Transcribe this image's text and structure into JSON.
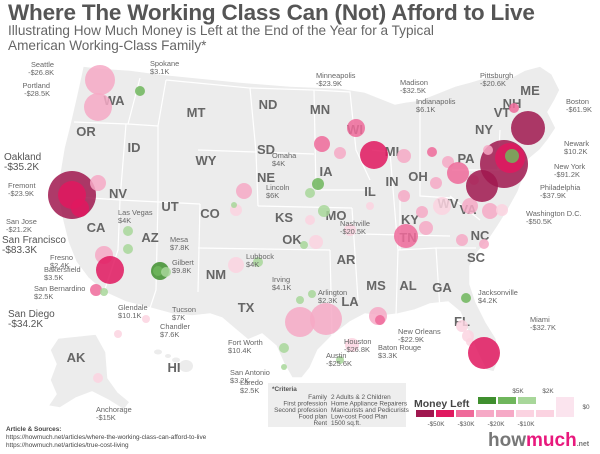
{
  "title": "Where The Working Class Can (Not) Afford to Live",
  "subtitle_line1": "Illustrating How Much Money is Left at the End of the Year for a Typical",
  "subtitle_line2": "American Working-Class Family*",
  "states": [
    "WA",
    "OR",
    "ID",
    "MT",
    "ND",
    "MN",
    "WI",
    "MI",
    "ME",
    "NY",
    "NH",
    "VT",
    "PA",
    "OH",
    "IN",
    "IL",
    "IA",
    "SD",
    "NE",
    "WY",
    "NV",
    "UT",
    "CO",
    "KS",
    "MO",
    "KY",
    "WV",
    "VA",
    "NC",
    "TN",
    "AR",
    "OK",
    "TX",
    "NM",
    "AZ",
    "CA",
    "MS",
    "AL",
    "GA",
    "SC",
    "LA",
    "FL",
    "AK",
    "HI"
  ],
  "cities": [
    {
      "name": "Seattle",
      "value": "-$26.8K"
    },
    {
      "name": "Spokane",
      "value": "$3.1K"
    },
    {
      "name": "Portland",
      "value": "-$28.5K"
    },
    {
      "name": "Minneapolis",
      "value": "-$23.9K"
    },
    {
      "name": "Madison",
      "value": "-$32.5K"
    },
    {
      "name": "Pittsburgh",
      "value": "-$20.6K"
    },
    {
      "name": "Indianapolis",
      "value": "$6.1K"
    },
    {
      "name": "Boston",
      "value": "-$61.9K"
    },
    {
      "name": "Newark",
      "value": "$10.2K"
    },
    {
      "name": "New York",
      "value": "-$91.2K"
    },
    {
      "name": "Philadelphia",
      "value": "-$37.9K"
    },
    {
      "name": "Washington D.C.",
      "value": "-$50.5K"
    },
    {
      "name": "Oakland",
      "value": "-$35.2K"
    },
    {
      "name": "Fremont",
      "value": "-$23.9K"
    },
    {
      "name": "San Jose",
      "value": "-$21.2K"
    },
    {
      "name": "San Francisco",
      "value": "-$83.3K"
    },
    {
      "name": "Omaha",
      "value": "$4K"
    },
    {
      "name": "Lincoln",
      "value": "$6K"
    },
    {
      "name": "Las Vegas",
      "value": "$4K"
    },
    {
      "name": "Nashville",
      "value": "-$20.5K"
    },
    {
      "name": "Mesa",
      "value": "$7.8K"
    },
    {
      "name": "Gilbert",
      "value": "$9.8K"
    },
    {
      "name": "Fresno",
      "value": "$2.4K"
    },
    {
      "name": "Bakersfield",
      "value": "$3.5K"
    },
    {
      "name": "San Bernardino",
      "value": "$2.5K"
    },
    {
      "name": "Lubbock",
      "value": "$4K"
    },
    {
      "name": "Irving",
      "value": "$4.1K"
    },
    {
      "name": "Arlington",
      "value": "$2.3K"
    },
    {
      "name": "Jacksonville",
      "value": "$4.2K"
    },
    {
      "name": "San Diego",
      "value": "-$34.2K"
    },
    {
      "name": "Glendale",
      "value": "$10.1K"
    },
    {
      "name": "Tucson",
      "value": "$7K"
    },
    {
      "name": "Chandler",
      "value": "$7.6K"
    },
    {
      "name": "Miami",
      "value": "-$32.7K"
    },
    {
      "name": "New Orleans",
      "value": "-$22.9K"
    },
    {
      "name": "Houston",
      "value": "-$26.8K"
    },
    {
      "name": "Baton Rouge",
      "value": "$3.3K"
    },
    {
      "name": "Fort Worth",
      "value": "$10.4K"
    },
    {
      "name": "Austin",
      "value": "-$25.6K"
    },
    {
      "name": "San Antonio",
      "value": "$3.2K"
    },
    {
      "name": "Laredo",
      "value": "$2.5K"
    },
    {
      "name": "Anchorage",
      "value": "-$15K"
    }
  ],
  "criteria": {
    "heading": "*Criteria",
    "rows": [
      {
        "label": "Family",
        "value": "2 Adults & 2 Children"
      },
      {
        "label": "First profession",
        "value": "Home Appliance Repairers"
      },
      {
        "label": "Second profession",
        "value": "Manicurists and Pedicurists"
      },
      {
        "label": "Food plan",
        "value": "Low-cost Food Plan"
      },
      {
        "label": "Rent",
        "value": "1500 sq.ft."
      }
    ]
  },
  "legend": {
    "title": "Money Left",
    "positive_labels": [
      "$5K",
      "$2K"
    ],
    "zero_label": "$0",
    "negative_labels": [
      "-$50K",
      "-$30K",
      "-$20K",
      "-$10K"
    ],
    "colors": {
      "neg_darkest": "#a0174f",
      "neg_dark": "#e0185f",
      "neg_mid": "#ef6a9a",
      "neg_light": "#f6a9c6",
      "neg_lightest": "#fbd3e1",
      "pos_dark": "#3f8f2e",
      "pos_mid": "#6fb65c",
      "pos_light": "#a8d79a"
    }
  },
  "sources": {
    "heading": "Article & Sources:",
    "links": [
      "https://howmuch.net/articles/where-the-working-class-can-afford-to-live",
      "https://howmuch.net/articles/true-cost-living"
    ]
  },
  "logo": {
    "how": "how",
    "much": "much",
    "net": ".net"
  }
}
